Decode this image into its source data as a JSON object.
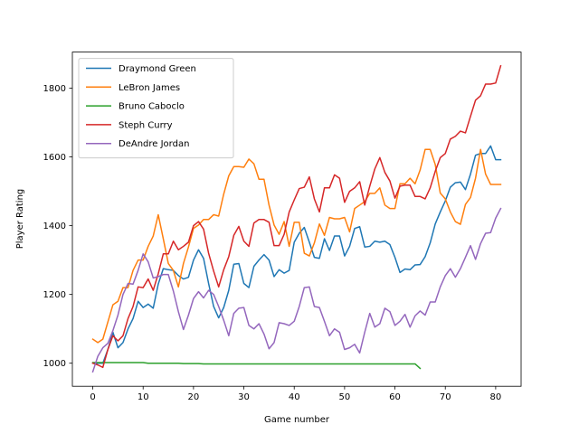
{
  "chart_data": {
    "type": "line",
    "title": "",
    "xlabel": "Game number",
    "ylabel": "Player Rating",
    "xlim": [
      -4.05,
      85.05
    ],
    "ylim": [
      933,
      1905
    ],
    "xticks": [
      0,
      10,
      20,
      30,
      40,
      50,
      60,
      70,
      80
    ],
    "yticks": [
      1000,
      1200,
      1400,
      1600,
      1800
    ],
    "grid": false,
    "legend_position": "upper-left",
    "series": [
      {
        "name": "Draymond Green",
        "color": "#1f77b4",
        "values": [
          1000,
          1000,
          1000,
          1040,
          1090,
          1045,
          1060,
          1100,
          1130,
          1180,
          1162,
          1172,
          1160,
          1230,
          1275,
          1272,
          1270,
          1255,
          1245,
          1250,
          1300,
          1330,
          1305,
          1232,
          1165,
          1132,
          1162,
          1212,
          1288,
          1290,
          1232,
          1220,
          1282,
          1300,
          1316,
          1300,
          1252,
          1272,
          1262,
          1270,
          1352,
          1378,
          1395,
          1352,
          1308,
          1305,
          1362,
          1328,
          1370,
          1370,
          1312,
          1340,
          1392,
          1397,
          1338,
          1340,
          1355,
          1352,
          1355,
          1345,
          1308,
          1264,
          1274,
          1272,
          1286,
          1287,
          1310,
          1350,
          1405,
          1440,
          1472,
          1512,
          1525,
          1527,
          1505,
          1550,
          1605,
          1610,
          1610,
          1632,
          1592,
          1592
        ]
      },
      {
        "name": "LeBron James",
        "color": "#ff7f0e",
        "values": [
          1070,
          1060,
          1070,
          1120,
          1170,
          1180,
          1220,
          1220,
          1270,
          1300,
          1300,
          1340,
          1370,
          1432,
          1362,
          1290,
          1270,
          1222,
          1290,
          1338,
          1392,
          1402,
          1418,
          1418,
          1432,
          1428,
          1492,
          1545,
          1572,
          1572,
          1570,
          1594,
          1580,
          1535,
          1535,
          1460,
          1402,
          1375,
          1412,
          1340,
          1410,
          1410,
          1320,
          1312,
          1350,
          1405,
          1372,
          1424,
          1420,
          1420,
          1424,
          1382,
          1450,
          1460,
          1470,
          1494,
          1494,
          1510,
          1460,
          1450,
          1450,
          1522,
          1522,
          1538,
          1522,
          1562,
          1622,
          1622,
          1578,
          1495,
          1478,
          1440,
          1412,
          1404,
          1462,
          1482,
          1538,
          1622,
          1550,
          1520,
          1520,
          1520
        ]
      },
      {
        "name": "Bruno Caboclo",
        "color": "#2ca02c",
        "values": [
          1002,
          1002,
          1002,
          1002,
          1002,
          1002,
          1002,
          1002,
          1002,
          1002,
          1002,
          1000,
          1000,
          1000,
          1000,
          1000,
          1000,
          1000,
          999,
          999,
          999,
          999,
          998,
          998,
          998,
          998,
          998,
          998,
          998,
          998,
          998,
          998,
          998,
          998,
          998,
          998,
          998,
          998,
          998,
          998,
          998,
          998,
          998,
          998,
          998,
          998,
          998,
          998,
          998,
          998,
          998,
          998,
          998,
          998,
          998,
          998,
          998,
          998,
          998,
          998,
          998,
          998,
          998,
          998,
          998,
          985
        ]
      },
      {
        "name": "Steph Curry",
        "color": "#d62728",
        "values": [
          1000,
          995,
          988,
          1040,
          1080,
          1065,
          1080,
          1130,
          1165,
          1222,
          1220,
          1245,
          1212,
          1260,
          1318,
          1318,
          1355,
          1330,
          1340,
          1352,
          1400,
          1412,
          1390,
          1320,
          1268,
          1222,
          1272,
          1310,
          1372,
          1398,
          1355,
          1340,
          1408,
          1418,
          1418,
          1410,
          1342,
          1342,
          1375,
          1440,
          1475,
          1508,
          1512,
          1542,
          1478,
          1440,
          1510,
          1510,
          1548,
          1538,
          1468,
          1500,
          1510,
          1528,
          1460,
          1515,
          1565,
          1598,
          1555,
          1530,
          1480,
          1515,
          1518,
          1518,
          1485,
          1485,
          1478,
          1510,
          1558,
          1598,
          1610,
          1652,
          1660,
          1675,
          1670,
          1718,
          1765,
          1778,
          1812,
          1812,
          1815,
          1865
        ]
      },
      {
        "name": "DeAndre Jordan",
        "color": "#9467bd",
        "values": [
          975,
          1020,
          1045,
          1058,
          1095,
          1140,
          1200,
          1232,
          1230,
          1270,
          1318,
          1295,
          1248,
          1252,
          1258,
          1258,
          1210,
          1150,
          1098,
          1140,
          1188,
          1208,
          1190,
          1212,
          1200,
          1165,
          1125,
          1080,
          1145,
          1160,
          1162,
          1110,
          1100,
          1115,
          1085,
          1042,
          1060,
          1118,
          1115,
          1110,
          1122,
          1165,
          1220,
          1222,
          1165,
          1162,
          1122,
          1080,
          1100,
          1090,
          1040,
          1045,
          1055,
          1030,
          1090,
          1145,
          1105,
          1115,
          1160,
          1150,
          1110,
          1122,
          1142,
          1105,
          1138,
          1152,
          1140,
          1178,
          1178,
          1222,
          1255,
          1275,
          1250,
          1275,
          1308,
          1342,
          1302,
          1348,
          1378,
          1380,
          1422,
          1450
        ]
      }
    ]
  }
}
